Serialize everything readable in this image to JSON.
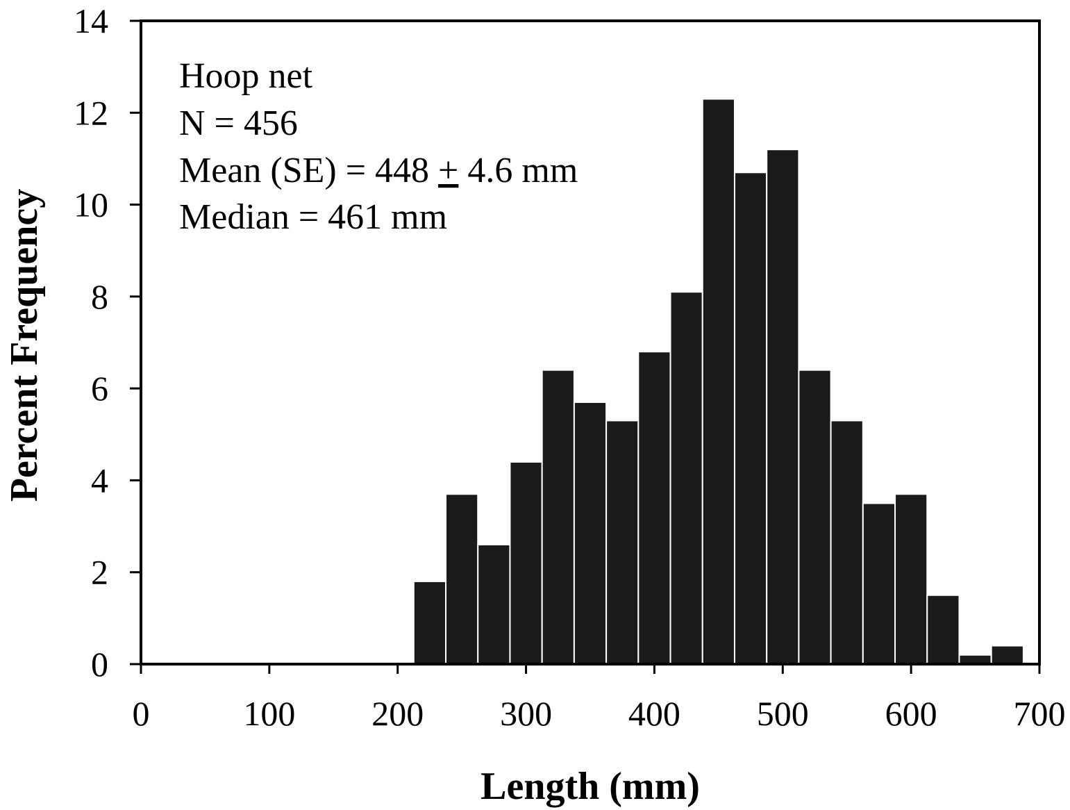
{
  "chart_data": {
    "type": "bar",
    "title": "",
    "xlabel": "Length (mm)",
    "ylabel": "Percent Frequency",
    "xlim": [
      0,
      700
    ],
    "ylim": [
      0,
      14
    ],
    "x_ticks": [
      "0",
      "100",
      "200",
      "300",
      "400",
      "500",
      "600",
      "700"
    ],
    "y_ticks": [
      "0",
      "2",
      "4",
      "6",
      "8",
      "10",
      "12",
      "14"
    ],
    "bin_width": 25,
    "bins": [
      {
        "start": 212.5,
        "value": 1.8
      },
      {
        "start": 237.5,
        "value": 3.7
      },
      {
        "start": 262.5,
        "value": 2.6
      },
      {
        "start": 287.5,
        "value": 4.4
      },
      {
        "start": 312.5,
        "value": 6.4
      },
      {
        "start": 337.5,
        "value": 5.7
      },
      {
        "start": 362.5,
        "value": 5.3
      },
      {
        "start": 387.5,
        "value": 6.8
      },
      {
        "start": 412.5,
        "value": 8.1
      },
      {
        "start": 437.5,
        "value": 12.3
      },
      {
        "start": 462.5,
        "value": 10.7
      },
      {
        "start": 487.5,
        "value": 11.2
      },
      {
        "start": 512.5,
        "value": 6.4
      },
      {
        "start": 537.5,
        "value": 5.3
      },
      {
        "start": 562.5,
        "value": 3.5
      },
      {
        "start": 587.5,
        "value": 3.7
      },
      {
        "start": 612.5,
        "value": 1.5
      },
      {
        "start": 637.5,
        "value": 0.2
      },
      {
        "start": 662.5,
        "value": 0.4
      }
    ],
    "grid": false,
    "bar_color": "#1a1a1a",
    "annotations": {
      "line1": "Hoop net",
      "line2": "N = 456",
      "line3_prefix": "Mean (SE) = 448 ",
      "line3_pm": "+",
      "line3_suffix": " 4.6 mm",
      "line4": "Median = 461 mm"
    }
  }
}
